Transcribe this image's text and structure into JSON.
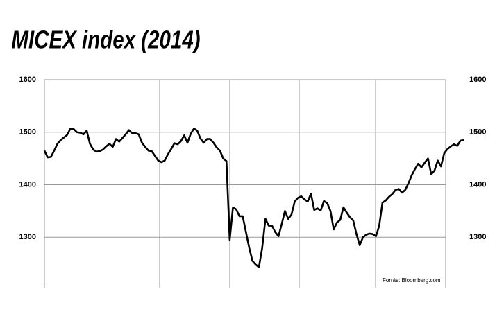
{
  "chart_data": {
    "type": "line",
    "title": "MICEX index (2014)",
    "source": "Forrás: Bloomberg.com",
    "categories": [
      null,
      null,
      null,
      null,
      null,
      null,
      null,
      null,
      null,
      null,
      null,
      null,
      null,
      null,
      null,
      null,
      null,
      null,
      null,
      null,
      null,
      null,
      null,
      null,
      null,
      null,
      null,
      null,
      null,
      null,
      null,
      null,
      null,
      null,
      null,
      null,
      null,
      null,
      null,
      null,
      null,
      null,
      null,
      null,
      null,
      null,
      null,
      null,
      null,
      null,
      null,
      null,
      null,
      null,
      null,
      null,
      null,
      null,
      null,
      null,
      null,
      null,
      null,
      null,
      null,
      null,
      null,
      null,
      null,
      null,
      null,
      null,
      null,
      null,
      null,
      null,
      null,
      null,
      null,
      null,
      null,
      null,
      null,
      null,
      null,
      null,
      null,
      null,
      null,
      null,
      null,
      null,
      null,
      null,
      null,
      null,
      null,
      null,
      null,
      null,
      null,
      null,
      null,
      null,
      null,
      null,
      null,
      null,
      null,
      null,
      null,
      null,
      null,
      null,
      null,
      null,
      null,
      null,
      null,
      null,
      null,
      null,
      null,
      null,
      null,
      null,
      null,
      null,
      null,
      null
    ],
    "values": [
      1465,
      1452,
      1453,
      1465,
      1478,
      1485,
      1490,
      1495,
      1507,
      1506,
      1500,
      1499,
      1496,
      1503,
      1478,
      1467,
      1463,
      1464,
      1467,
      1473,
      1478,
      1472,
      1487,
      1482,
      1489,
      1496,
      1504,
      1498,
      1498,
      1496,
      1480,
      1472,
      1465,
      1464,
      1455,
      1446,
      1443,
      1446,
      1458,
      1468,
      1479,
      1477,
      1483,
      1494,
      1480,
      1497,
      1507,
      1503,
      1488,
      1480,
      1487,
      1487,
      1480,
      1471,
      1465,
      1450,
      1445,
      1295,
      1357,
      1353,
      1340,
      1340,
      1310,
      1280,
      1255,
      1248,
      1243,
      1280,
      1335,
      1322,
      1322,
      1310,
      1302,
      1325,
      1350,
      1335,
      1343,
      1368,
      1375,
      1378,
      1372,
      1368,
      1383,
      1352,
      1355,
      1351,
      1369,
      1365,
      1350,
      1315,
      1328,
      1333,
      1357,
      1347,
      1338,
      1332,
      1306,
      1285,
      1300,
      1305,
      1307,
      1306,
      1302,
      1322,
      1366,
      1370,
      1377,
      1382,
      1390,
      1392,
      1385,
      1390,
      1403,
      1418,
      1430,
      1440,
      1433,
      1442,
      1450,
      1420,
      1427,
      1446,
      1435,
      1460,
      1468,
      1473,
      1477,
      1474,
      1484,
      1485
    ],
    "color": "#000000",
    "ylim": [
      1200,
      1600
    ],
    "yticks": [
      1300,
      1400,
      1500,
      1600
    ],
    "y2lim": [
      1200,
      1600
    ],
    "y2ticks": [
      1300,
      1400,
      1500,
      1600
    ],
    "grid": true
  }
}
